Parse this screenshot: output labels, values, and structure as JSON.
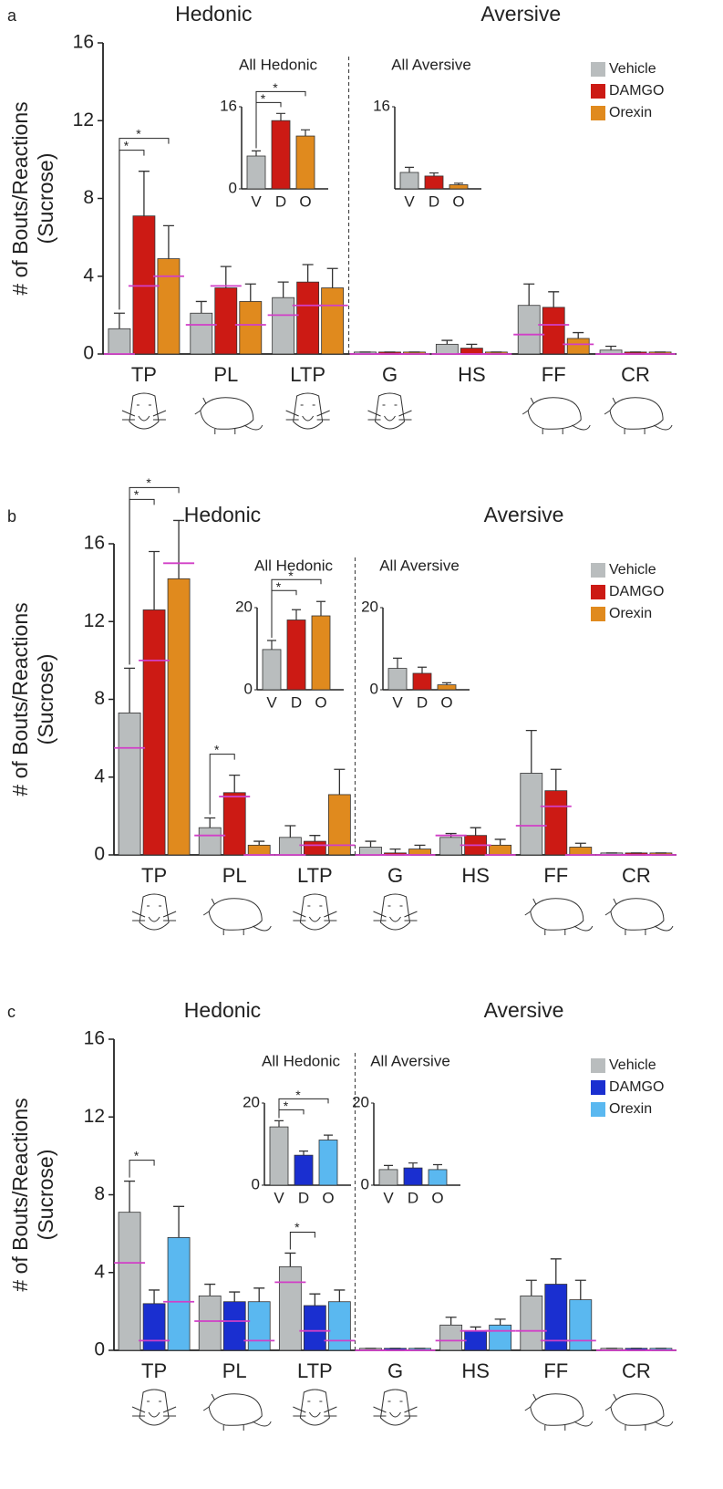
{
  "chart_data": [
    {
      "type": "bar",
      "panel": "a",
      "titles": [
        "Hedonic",
        "Aversive"
      ],
      "ylabel": [
        "# of Bouts/Reactions",
        "(Sucrose)"
      ],
      "categories": [
        "TP",
        "PL",
        "LTP",
        "G",
        "HS",
        "FF",
        "CR"
      ],
      "ylim": [
        0,
        16
      ],
      "yticks": [
        0,
        4,
        8,
        12,
        16
      ],
      "median_color": "#d13fc7",
      "series": [
        {
          "name": "Vehicle",
          "color": "#b9bdbe",
          "values": [
            1.3,
            2.1,
            2.9,
            0.1,
            0.5,
            2.5,
            0.2
          ],
          "errors": [
            0.8,
            0.6,
            0.8,
            0,
            0.2,
            1.1,
            0.2
          ],
          "medians": [
            0,
            1.5,
            2.0,
            0,
            0,
            1.0,
            0
          ]
        },
        {
          "name": "DAMGO",
          "color": "#cc1a14",
          "values": [
            7.1,
            3.4,
            3.7,
            0.1,
            0.3,
            2.4,
            0.1
          ],
          "errors": [
            2.3,
            1.1,
            0.9,
            0,
            0.2,
            0.8,
            0
          ],
          "medians": [
            3.5,
            3.5,
            2.5,
            0,
            0,
            1.5,
            0
          ]
        },
        {
          "name": "Orexin",
          "color": "#e08a1e",
          "values": [
            4.9,
            2.7,
            3.4,
            0.1,
            0.1,
            0.8,
            0.1
          ],
          "errors": [
            1.7,
            0.9,
            1.0,
            0,
            0,
            0.3,
            0
          ],
          "medians": [
            4.0,
            1.5,
            2.5,
            0,
            0,
            0.5,
            0
          ]
        }
      ],
      "significance": [
        {
          "category": "TP",
          "between": [
            "Vehicle",
            "DAMGO"
          ],
          "label": "*"
        },
        {
          "category": "TP",
          "between": [
            "Vehicle",
            "Orexin"
          ],
          "label": "*"
        }
      ],
      "insets": [
        {
          "type": "bar",
          "title": "All Hedonic",
          "categories": [
            "V",
            "D",
            "O"
          ],
          "values": [
            6.4,
            13.3,
            10.3
          ],
          "errors": [
            1.0,
            1.4,
            1.2
          ],
          "colors": [
            "#b9bdbe",
            "#cc1a14",
            "#e08a1e"
          ],
          "ylim": [
            0,
            16
          ],
          "yticks": [
            0,
            16
          ],
          "significance": [
            {
              "between": [
                "V",
                "D"
              ],
              "label": "*"
            },
            {
              "between": [
                "V",
                "O"
              ],
              "label": "*"
            }
          ]
        },
        {
          "type": "bar",
          "title": "All Aversive",
          "categories": [
            "V",
            "D",
            "O"
          ],
          "values": [
            3.2,
            2.5,
            0.8
          ],
          "errors": [
            1.0,
            0.6,
            0.3
          ],
          "colors": [
            "#b9bdbe",
            "#cc1a14",
            "#e08a1e"
          ],
          "ylim": [
            0,
            16
          ],
          "yticks": [
            16
          ],
          "significance": []
        }
      ]
    },
    {
      "type": "bar",
      "panel": "b",
      "titles": [
        "Hedonic",
        "Aversive"
      ],
      "ylabel": [
        "# of Bouts/Reactions",
        "(Sucrose)"
      ],
      "categories": [
        "TP",
        "PL",
        "LTP",
        "G",
        "HS",
        "FF",
        "CR"
      ],
      "ylim": [
        0,
        16
      ],
      "yticks": [
        0,
        4,
        8,
        12,
        16
      ],
      "median_color": "#d13fc7",
      "series": [
        {
          "name": "Vehicle",
          "color": "#b9bdbe",
          "values": [
            7.3,
            1.4,
            0.9,
            0.4,
            0.9,
            4.2,
            0.1
          ],
          "errors": [
            2.3,
            0.5,
            0.6,
            0.3,
            0.2,
            2.2,
            0
          ],
          "medians": [
            5.5,
            1.0,
            0,
            0,
            1.0,
            1.5,
            0
          ]
        },
        {
          "name": "DAMGO",
          "color": "#cc1a14",
          "values": [
            12.6,
            3.2,
            0.7,
            0.1,
            1.0,
            3.3,
            0.1
          ],
          "errors": [
            3.0,
            0.9,
            0.3,
            0.2,
            0.4,
            1.1,
            0
          ],
          "medians": [
            10.0,
            3.0,
            0.5,
            0,
            0.5,
            2.5,
            0
          ]
        },
        {
          "name": "Orexin",
          "color": "#e08a1e",
          "values": [
            14.2,
            0.5,
            3.1,
            0.3,
            0.5,
            0.4,
            0.1
          ],
          "errors": [
            3.0,
            0.2,
            1.3,
            0.2,
            0.3,
            0.2,
            0
          ],
          "medians": [
            15.0,
            0,
            0.5,
            0,
            0,
            0,
            0
          ]
        }
      ],
      "significance": [
        {
          "category": "TP",
          "between": [
            "Vehicle",
            "DAMGO"
          ],
          "label": "*"
        },
        {
          "category": "TP",
          "between": [
            "Vehicle",
            "Orexin"
          ],
          "label": "*"
        },
        {
          "category": "PL",
          "between": [
            "Vehicle",
            "DAMGO"
          ],
          "label": "*"
        }
      ],
      "insets": [
        {
          "type": "bar",
          "title": "All Hedonic",
          "categories": [
            "V",
            "D",
            "O"
          ],
          "values": [
            9.8,
            17,
            18
          ],
          "errors": [
            2.2,
            2.5,
            3.5
          ],
          "colors": [
            "#b9bdbe",
            "#cc1a14",
            "#e08a1e"
          ],
          "ylim": [
            0,
            20
          ],
          "yticks": [
            0,
            20
          ],
          "significance": [
            {
              "between": [
                "V",
                "D"
              ],
              "label": "*"
            },
            {
              "between": [
                "V",
                "O"
              ],
              "label": "*"
            }
          ]
        },
        {
          "type": "bar",
          "title": "All Aversive",
          "categories": [
            "V",
            "D",
            "O"
          ],
          "values": [
            5.2,
            4.0,
            1.2
          ],
          "errors": [
            2.5,
            1.5,
            0.5
          ],
          "colors": [
            "#b9bdbe",
            "#cc1a14",
            "#e08a1e"
          ],
          "ylim": [
            0,
            20
          ],
          "yticks": [
            0,
            20
          ],
          "significance": []
        }
      ]
    },
    {
      "type": "bar",
      "panel": "c",
      "titles": [
        "Hedonic",
        "Aversive"
      ],
      "ylabel": [
        "# of Bouts/Reactions",
        "(Sucrose)"
      ],
      "categories": [
        "TP",
        "PL",
        "LTP",
        "G",
        "HS",
        "FF",
        "CR"
      ],
      "ylim": [
        0,
        16
      ],
      "yticks": [
        0,
        4,
        8,
        12,
        16
      ],
      "median_color": "#d13fc7",
      "series": [
        {
          "name": "Vehicle",
          "color": "#b9bdbe",
          "values": [
            7.1,
            2.8,
            4.3,
            0.1,
            1.3,
            2.8,
            0.1
          ],
          "errors": [
            1.6,
            0.6,
            0.7,
            0,
            0.4,
            0.8,
            0
          ],
          "medians": [
            4.5,
            1.5,
            3.5,
            0,
            0.5,
            1.0,
            0
          ]
        },
        {
          "name": "DAMGO",
          "color": "#1a2fd0",
          "values": [
            2.4,
            2.5,
            2.3,
            0.1,
            1.0,
            3.4,
            0.1
          ],
          "errors": [
            0.7,
            0.5,
            0.6,
            0,
            0.2,
            1.3,
            0
          ],
          "medians": [
            0.5,
            1.5,
            1.0,
            0,
            1.0,
            0.5,
            0
          ]
        },
        {
          "name": "Orexin",
          "color": "#5ab8f0",
          "values": [
            5.8,
            2.5,
            2.5,
            0.1,
            1.3,
            2.6,
            0.1
          ],
          "errors": [
            1.6,
            0.7,
            0.6,
            0,
            0.3,
            1.0,
            0
          ],
          "medians": [
            2.5,
            0.5,
            0.5,
            0,
            1.0,
            0.5,
            0
          ]
        }
      ],
      "significance": [
        {
          "category": "TP",
          "between": [
            "Vehicle",
            "DAMGO"
          ],
          "label": "*"
        },
        {
          "category": "LTP",
          "between": [
            "Vehicle",
            "DAMGO"
          ],
          "label": "*"
        }
      ],
      "insets": [
        {
          "type": "bar",
          "title": "All Hedonic",
          "categories": [
            "V",
            "D",
            "O"
          ],
          "values": [
            14.2,
            7.3,
            11
          ],
          "errors": [
            1.5,
            1.0,
            1.2
          ],
          "colors": [
            "#b9bdbe",
            "#1a2fd0",
            "#5ab8f0"
          ],
          "ylim": [
            0,
            20
          ],
          "yticks": [
            0,
            20
          ],
          "significance": [
            {
              "between": [
                "V",
                "D"
              ],
              "label": "*"
            },
            {
              "between": [
                "V",
                "O"
              ],
              "label": "*"
            }
          ]
        },
        {
          "type": "bar",
          "title": "All Aversive",
          "categories": [
            "V",
            "D",
            "O"
          ],
          "values": [
            3.8,
            4.2,
            3.8
          ],
          "errors": [
            1.0,
            1.2,
            1.2
          ],
          "colors": [
            "#b9bdbe",
            "#1a2fd0",
            "#5ab8f0"
          ],
          "ylim": [
            0,
            20
          ],
          "yticks": [
            0,
            20
          ],
          "significance": []
        }
      ]
    }
  ]
}
